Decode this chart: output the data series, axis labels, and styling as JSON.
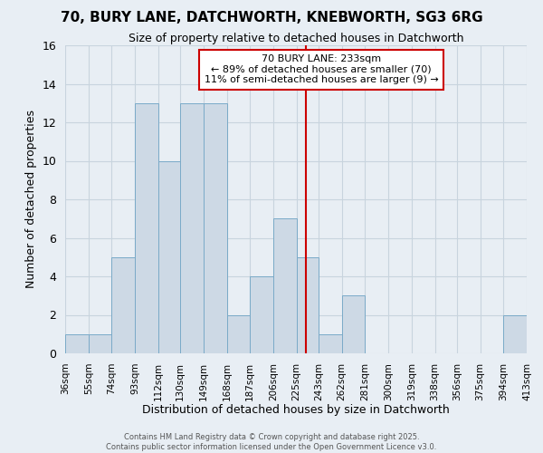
{
  "title": "70, BURY LANE, DATCHWORTH, KNEBWORTH, SG3 6RG",
  "subtitle": "Size of property relative to detached houses in Datchworth",
  "xlabel": "Distribution of detached houses by size in Datchworth",
  "ylabel": "Number of detached properties",
  "bin_labels": [
    "36sqm",
    "55sqm",
    "74sqm",
    "93sqm",
    "112sqm",
    "130sqm",
    "149sqm",
    "168sqm",
    "187sqm",
    "206sqm",
    "225sqm",
    "243sqm",
    "262sqm",
    "281sqm",
    "300sqm",
    "319sqm",
    "338sqm",
    "356sqm",
    "375sqm",
    "394sqm",
    "413sqm"
  ],
  "bin_edges": [
    36,
    55,
    74,
    93,
    112,
    130,
    149,
    168,
    187,
    206,
    225,
    243,
    262,
    281,
    300,
    319,
    338,
    356,
    375,
    394,
    413
  ],
  "bar_heights": [
    1,
    1,
    5,
    13,
    10,
    13,
    13,
    2,
    4,
    7,
    5,
    1,
    3,
    0,
    0,
    0,
    0,
    0,
    0,
    2
  ],
  "bar_color": "#cdd9e5",
  "bar_edge_color": "#7aaac8",
  "vline_x": 233,
  "vline_color": "#cc0000",
  "ylim": [
    0,
    16
  ],
  "yticks": [
    0,
    2,
    4,
    6,
    8,
    10,
    12,
    14,
    16
  ],
  "annotation_title": "70 BURY LANE: 233sqm",
  "annotation_line1": "← 89% of detached houses are smaller (70)",
  "annotation_line2": "11% of semi-detached houses are larger (9) →",
  "annotation_box_color": "#ffffff",
  "annotation_edge_color": "#cc0000",
  "grid_color": "#c8d4de",
  "background_color": "#e8eef4",
  "footer_line1": "Contains HM Land Registry data © Crown copyright and database right 2025.",
  "footer_line2": "Contains public sector information licensed under the Open Government Licence v3.0."
}
